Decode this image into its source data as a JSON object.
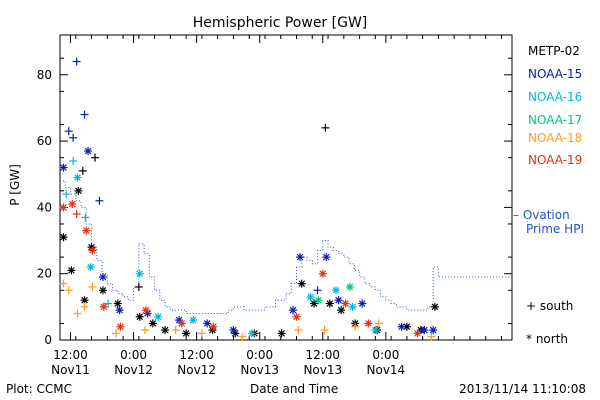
{
  "chart_data": {
    "type": "scatter",
    "title": "Hemispheric Power [GW]",
    "ylabel": "P [GW]",
    "xlabel": "Date and Time",
    "ylim": [
      0,
      92
    ],
    "yticks": [
      0,
      20,
      40,
      60,
      80
    ],
    "xlim": [
      "2013-11-11 10:00",
      "2013-11-15 00:00"
    ],
    "xticks": [
      {
        "time": "2013-11-11 12:00",
        "label1": "12:00",
        "label2": "Nov11"
      },
      {
        "time": "2013-11-12 00:00",
        "label1": "0:00",
        "label2": "Nov12"
      },
      {
        "time": "2013-11-12 12:00",
        "label1": "12:00",
        "label2": "Nov12"
      },
      {
        "time": "2013-11-13 00:00",
        "label1": "0:00",
        "label2": "Nov13"
      },
      {
        "time": "2013-11-13 12:00",
        "label1": "12:00",
        "label2": "Nov13"
      },
      {
        "time": "2013-11-14 00:00",
        "label1": "0:00",
        "label2": "Nov14"
      }
    ],
    "series": [
      {
        "name": "METP-02",
        "color": "#000000",
        "points": [
          [
            "2013-11-11 10:40",
            31,
            "north"
          ],
          [
            "2013-11-11 12:10",
            21,
            "north"
          ],
          [
            "2013-11-11 13:30",
            45,
            "north"
          ],
          [
            "2013-11-11 14:20",
            51,
            "plus"
          ],
          [
            "2013-11-11 14:40",
            12,
            "north"
          ],
          [
            "2013-11-11 16:00",
            28,
            "north"
          ],
          [
            "2013-11-11 16:40",
            55,
            "plus"
          ],
          [
            "2013-11-11 18:10",
            15,
            "north"
          ],
          [
            "2013-11-11 21:00",
            11,
            "north"
          ],
          [
            "2013-11-12 01:00",
            16,
            "plus"
          ],
          [
            "2013-11-12 01:10",
            7,
            "north"
          ],
          [
            "2013-11-12 03:40",
            5,
            "north"
          ],
          [
            "2013-11-12 06:00",
            3,
            "north"
          ],
          [
            "2013-11-12 10:00",
            2,
            "north"
          ],
          [
            "2013-11-12 15:00",
            3,
            "north"
          ],
          [
            "2013-11-12 19:20",
            2,
            "north"
          ],
          [
            "2013-11-12 23:00",
            2,
            "north"
          ],
          [
            "2013-11-13 04:10",
            2,
            "north"
          ],
          [
            "2013-11-13 08:00",
            17,
            "north"
          ],
          [
            "2013-11-13 10:20",
            11,
            "north"
          ],
          [
            "2013-11-13 12:30",
            64,
            "plus"
          ],
          [
            "2013-11-13 13:20",
            11,
            "north"
          ],
          [
            "2013-11-13 15:30",
            9,
            "north"
          ],
          [
            "2013-11-13 18:10",
            5,
            "north"
          ],
          [
            "2013-11-13 22:20",
            3,
            "north"
          ],
          [
            "2013-11-14 04:00",
            4,
            "north"
          ],
          [
            "2013-11-14 06:40",
            3,
            "north"
          ],
          [
            "2013-11-14 09:20",
            10,
            "north"
          ]
        ]
      },
      {
        "name": "NOAA-15",
        "color": "#0a1db8",
        "points": [
          [
            "2013-11-11 10:40",
            52,
            "north"
          ],
          [
            "2013-11-11 11:40",
            63,
            "plus"
          ],
          [
            "2013-11-11 12:30",
            61,
            "plus"
          ],
          [
            "2013-11-11 13:10",
            84,
            "plus"
          ],
          [
            "2013-11-11 14:40",
            68,
            "plus"
          ],
          [
            "2013-11-11 15:20",
            57,
            "north"
          ],
          [
            "2013-11-11 17:30",
            42,
            "plus"
          ],
          [
            "2013-11-11 18:10",
            19,
            "north"
          ],
          [
            "2013-11-11 21:20",
            9,
            "north"
          ],
          [
            "2013-11-12 02:40",
            8,
            "north"
          ],
          [
            "2013-11-12 08:40",
            6,
            "north"
          ],
          [
            "2013-11-12 14:00",
            5,
            "north"
          ],
          [
            "2013-11-12 19:00",
            3,
            "north"
          ],
          [
            "2013-11-13 06:20",
            9,
            "north"
          ],
          [
            "2013-11-13 07:40",
            25,
            "north"
          ],
          [
            "2013-11-13 11:00",
            15,
            "plus"
          ],
          [
            "2013-11-13 12:40",
            25,
            "north"
          ],
          [
            "2013-11-13 15:00",
            12,
            "north"
          ],
          [
            "2013-11-13 19:30",
            11,
            "north"
          ],
          [
            "2013-11-14 03:00",
            4,
            "north"
          ],
          [
            "2013-11-14 07:20",
            3,
            "north"
          ],
          [
            "2013-11-14 09:00",
            3,
            "north"
          ]
        ]
      },
      {
        "name": "NOAA-16",
        "color": "#00b8d8",
        "points": [
          [
            "2013-11-11 11:10",
            44,
            "plus"
          ],
          [
            "2013-11-11 12:30",
            54,
            "plus"
          ],
          [
            "2013-11-11 13:20",
            49,
            "north"
          ],
          [
            "2013-11-11 14:50",
            37,
            "plus"
          ],
          [
            "2013-11-11 15:50",
            22,
            "north"
          ],
          [
            "2013-11-11 19:10",
            11,
            "plus"
          ],
          [
            "2013-11-12 01:10",
            20,
            "north"
          ],
          [
            "2013-11-12 04:40",
            7,
            "north"
          ],
          [
            "2013-11-12 11:20",
            6,
            "north"
          ],
          [
            "2013-11-12 22:30",
            2,
            "north"
          ],
          [
            "2013-11-13 09:40",
            13,
            "north"
          ],
          [
            "2013-11-13 14:30",
            15,
            "north"
          ],
          [
            "2013-11-13 17:40",
            10,
            "north"
          ],
          [
            "2013-11-13 22:00",
            3,
            "north"
          ]
        ]
      },
      {
        "name": "NOAA-17",
        "color": "#00c878",
        "points": [
          [
            "2013-11-13 11:10",
            12,
            "north"
          ],
          [
            "2013-11-13 17:10",
            16,
            "north"
          ]
        ]
      },
      {
        "name": "NOAA-18",
        "color": "#ff9a1a",
        "points": [
          [
            "2013-11-11 10:40",
            17,
            "plus"
          ],
          [
            "2013-11-11 11:40",
            15,
            "plus"
          ],
          [
            "2013-11-11 13:20",
            8,
            "plus"
          ],
          [
            "2013-11-11 14:40",
            10,
            "plus"
          ],
          [
            "2013-11-11 16:10",
            16,
            "plus"
          ],
          [
            "2013-11-11 20:40",
            2,
            "plus"
          ],
          [
            "2013-11-12 02:10",
            3,
            "plus"
          ],
          [
            "2013-11-12 08:00",
            3,
            "plus"
          ],
          [
            "2013-11-12 13:00",
            2,
            "plus"
          ],
          [
            "2013-11-12 20:40",
            1,
            "plus"
          ],
          [
            "2013-11-13 07:20",
            3,
            "plus"
          ],
          [
            "2013-11-13 12:20",
            3,
            "plus"
          ],
          [
            "2013-11-13 18:10",
            4,
            "plus"
          ],
          [
            "2013-11-13 22:40",
            5,
            "plus"
          ],
          [
            "2013-11-14 08:40",
            1,
            "plus"
          ]
        ]
      },
      {
        "name": "NOAA-19",
        "color": "#e03018",
        "points": [
          [
            "2013-11-11 10:40",
            40,
            "north"
          ],
          [
            "2013-11-11 12:20",
            41,
            "north"
          ],
          [
            "2013-11-11 13:10",
            38,
            "plus"
          ],
          [
            "2013-11-11 15:00",
            33,
            "north"
          ],
          [
            "2013-11-11 16:10",
            27,
            "north"
          ],
          [
            "2013-11-11 18:20",
            10,
            "north"
          ],
          [
            "2013-11-11 21:30",
            4,
            "north"
          ],
          [
            "2013-11-12 02:20",
            9,
            "north"
          ],
          [
            "2013-11-12 09:10",
            5,
            "north"
          ],
          [
            "2013-11-12 15:10",
            4,
            "north"
          ],
          [
            "2013-11-13 07:00",
            7,
            "north"
          ],
          [
            "2013-11-13 12:00",
            20,
            "north"
          ],
          [
            "2013-11-13 16:20",
            11,
            "north"
          ],
          [
            "2013-11-13 20:40",
            5,
            "north"
          ],
          [
            "2013-11-14 06:00",
            2,
            "north"
          ]
        ]
      }
    ],
    "ovation": {
      "name": "Ovation Prime HPI",
      "color": "#2255cc",
      "steps": [
        [
          "2013-11-11 10:00",
          48
        ],
        [
          "2013-11-11 11:00",
          46
        ],
        [
          "2013-11-11 12:00",
          44
        ],
        [
          "2013-11-11 13:00",
          42
        ],
        [
          "2013-11-11 14:00",
          40
        ],
        [
          "2013-11-11 15:00",
          35
        ],
        [
          "2013-11-11 16:00",
          28
        ],
        [
          "2013-11-11 17:00",
          24
        ],
        [
          "2013-11-11 18:00",
          20
        ],
        [
          "2013-11-11 19:00",
          17
        ],
        [
          "2013-11-11 20:00",
          15
        ],
        [
          "2013-11-11 21:00",
          14
        ],
        [
          "2013-11-11 22:00",
          13
        ],
        [
          "2013-11-11 23:00",
          12
        ],
        [
          "2013-11-12 00:00",
          16
        ],
        [
          "2013-11-12 01:00",
          29
        ],
        [
          "2013-11-12 02:00",
          26
        ],
        [
          "2013-11-12 03:00",
          19
        ],
        [
          "2013-11-12 04:00",
          15
        ],
        [
          "2013-11-12 05:00",
          12
        ],
        [
          "2013-11-12 06:00",
          10
        ],
        [
          "2013-11-12 07:00",
          9
        ],
        [
          "2013-11-12 08:00",
          9
        ],
        [
          "2013-11-12 10:00",
          8
        ],
        [
          "2013-11-12 12:00",
          8
        ],
        [
          "2013-11-12 14:00",
          8
        ],
        [
          "2013-11-12 16:00",
          8
        ],
        [
          "2013-11-12 18:00",
          9
        ],
        [
          "2013-11-12 19:00",
          10
        ],
        [
          "2013-11-12 21:00",
          9
        ],
        [
          "2013-11-12 23:00",
          9
        ],
        [
          "2013-11-13 01:00",
          10
        ],
        [
          "2013-11-13 03:00",
          12
        ],
        [
          "2013-11-13 05:00",
          14
        ],
        [
          "2013-11-13 06:00",
          17
        ],
        [
          "2013-11-13 07:00",
          22
        ],
        [
          "2013-11-13 08:00",
          25
        ],
        [
          "2013-11-13 09:00",
          24
        ],
        [
          "2013-11-13 10:00",
          23
        ],
        [
          "2013-11-13 11:00",
          27
        ],
        [
          "2013-11-13 12:00",
          30
        ],
        [
          "2013-11-13 13:00",
          28
        ],
        [
          "2013-11-13 14:00",
          27
        ],
        [
          "2013-11-13 15:00",
          26
        ],
        [
          "2013-11-13 16:00",
          25
        ],
        [
          "2013-11-13 17:00",
          23
        ],
        [
          "2013-11-13 18:00",
          21
        ],
        [
          "2013-11-13 19:00",
          19
        ],
        [
          "2013-11-13 20:00",
          17
        ],
        [
          "2013-11-13 21:00",
          16
        ],
        [
          "2013-11-13 22:00",
          15
        ],
        [
          "2013-11-13 23:00",
          13
        ],
        [
          "2013-11-14 00:00",
          12
        ],
        [
          "2013-11-14 01:00",
          11
        ],
        [
          "2013-11-14 02:00",
          10
        ],
        [
          "2013-11-14 04:00",
          9
        ],
        [
          "2013-11-14 06:00",
          9
        ],
        [
          "2013-11-14 08:00",
          10
        ],
        [
          "2013-11-14 09:00",
          22
        ],
        [
          "2013-11-14 10:00",
          19
        ],
        [
          "2013-11-14 11:00",
          19
        ]
      ]
    },
    "grid": false,
    "legend_position": "right"
  },
  "legend": {
    "series": [
      "METP-02",
      "NOAA-15",
      "NOAA-16",
      "NOAA-17",
      "NOAA-18",
      "NOAA-19"
    ],
    "ovation_label_line1": "– Ovation",
    "ovation_label_line2": "Prime HPI",
    "south_label": "+ south",
    "north_label": "* north"
  },
  "footer": {
    "left": "Plot: CCMC",
    "center": "Date and Time",
    "right": "2013/11/14 11:10:08"
  }
}
